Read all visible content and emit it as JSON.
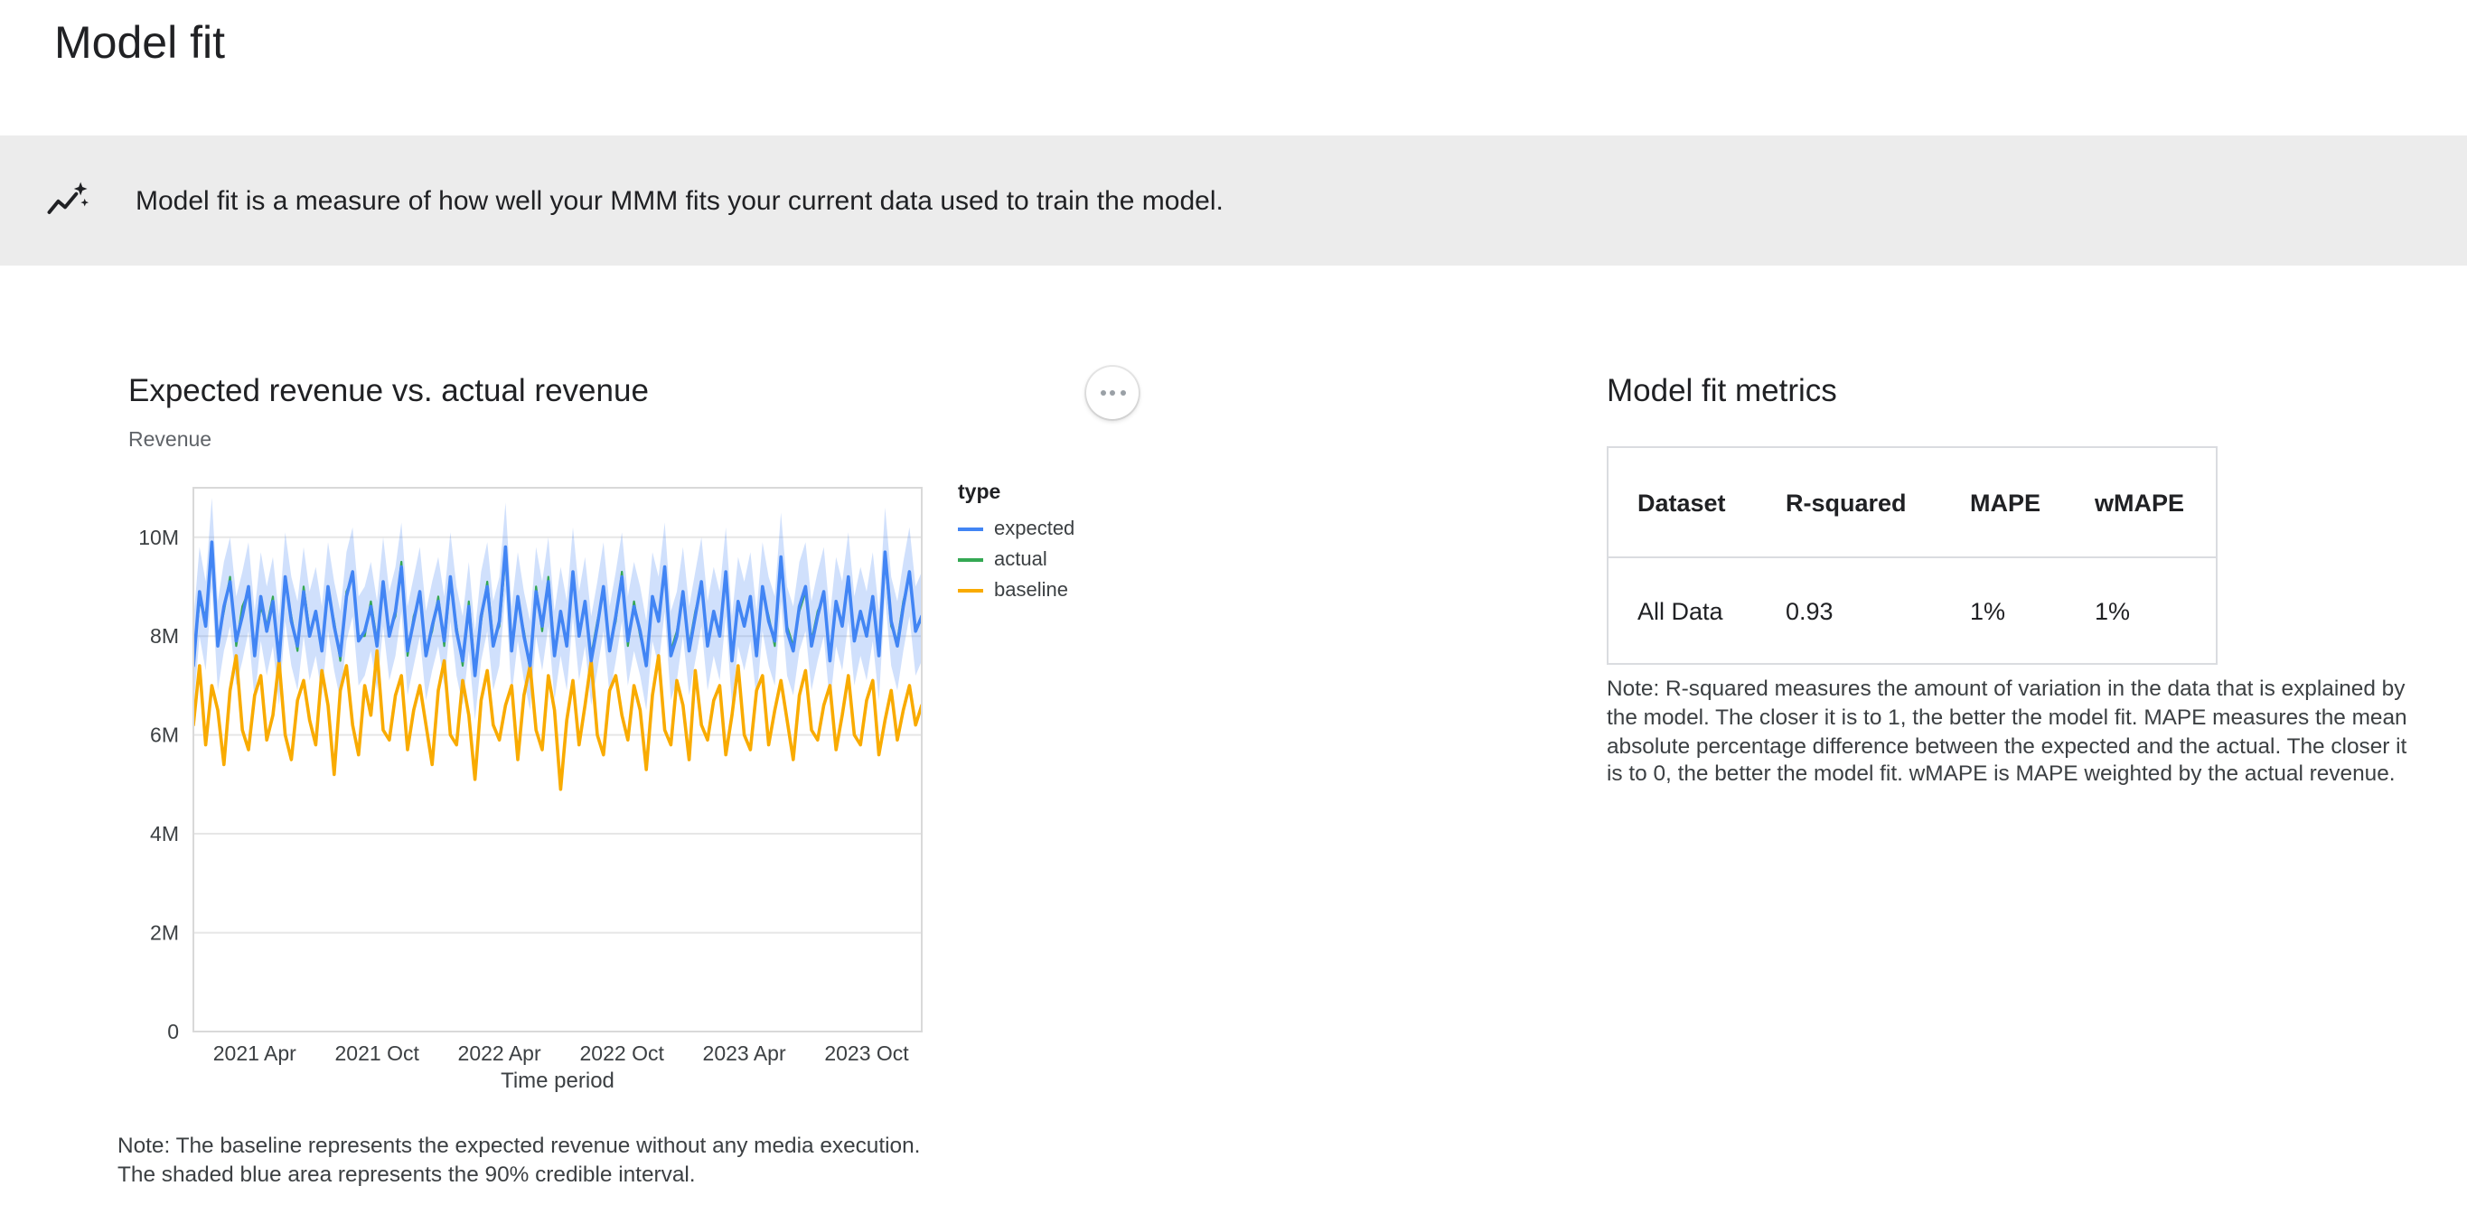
{
  "page": {
    "title": "Model fit"
  },
  "banner": {
    "icon": "model-fit-sparkline-icon",
    "text": "Model fit is a measure of how well your MMM fits your current data used to train the model."
  },
  "chart_card": {
    "more_menu_label": "more options",
    "note_lines": [
      "Note: The baseline represents the expected revenue without any media execution.",
      "The shaded blue area represents the 90% credible interval."
    ]
  },
  "chart_data": {
    "type": "line",
    "title": "Expected revenue vs. actual revenue",
    "ylabel": "Revenue",
    "xlabel": "Time period",
    "unit": "M",
    "ylim": [
      0,
      11
    ],
    "grid": true,
    "legend_position": "right",
    "legend_title": "type",
    "y_ticks": [
      0,
      2,
      4,
      6,
      8,
      10
    ],
    "y_tick_labels": [
      "0",
      "2M",
      "4M",
      "6M",
      "8M",
      "10M"
    ],
    "x_tick_indices": [
      10,
      30,
      50,
      70,
      90,
      110
    ],
    "x_tick_labels": [
      "2021 Apr",
      "2021 Oct",
      "2022 Apr",
      "2022 Oct",
      "2023 Apr",
      "2023 Oct"
    ],
    "credible_interval": {
      "level": "90%",
      "halfwidth": 0.9,
      "color": "#4285f4",
      "opacity": 0.25
    },
    "series": [
      {
        "name": "expected",
        "color": "#4285f4",
        "width": 1.8,
        "values": [
          7.4,
          8.9,
          8.2,
          9.9,
          7.8,
          8.6,
          9.1,
          7.9,
          8.4,
          9.0,
          7.6,
          8.8,
          8.1,
          8.7,
          7.5,
          9.2,
          8.3,
          7.8,
          8.9,
          8.0,
          8.5,
          7.7,
          9.0,
          8.2,
          7.6,
          8.8,
          9.3,
          7.9,
          8.1,
          8.6,
          7.8,
          9.1,
          8.0,
          8.5,
          9.4,
          7.7,
          8.3,
          8.9,
          7.6,
          8.2,
          8.7,
          7.9,
          9.2,
          8.1,
          7.5,
          8.6,
          7.2,
          8.4,
          9.0,
          7.8,
          8.3,
          9.8,
          7.7,
          8.8,
          8.0,
          7.4,
          8.9,
          8.2,
          9.1,
          7.6,
          8.5,
          7.8,
          9.3,
          8.0,
          8.7,
          7.5,
          8.2,
          9.0,
          7.7,
          8.4,
          9.2,
          7.9,
          8.6,
          8.1,
          7.4,
          8.8,
          8.3,
          9.4,
          7.6,
          8.0,
          8.9,
          7.7,
          8.4,
          9.1,
          7.8,
          8.5,
          8.0,
          9.3,
          7.5,
          8.7,
          8.2,
          8.8,
          7.6,
          9.0,
          8.3,
          7.9,
          9.6,
          8.1,
          7.7,
          8.6,
          9.0,
          7.8,
          8.4,
          8.9,
          7.5,
          8.7,
          8.2,
          9.2,
          7.9,
          8.5,
          8.0,
          8.8,
          7.6,
          9.7,
          8.3,
          7.8,
          8.6,
          9.3,
          8.1,
          8.4
        ]
      },
      {
        "name": "actual",
        "color": "#34a853",
        "width": 1.1,
        "values": [
          7.5,
          8.7,
          8.4,
          9.7,
          7.9,
          8.5,
          9.2,
          7.8,
          8.6,
          8.9,
          7.7,
          8.6,
          8.2,
          8.8,
          7.4,
          9.1,
          8.4,
          7.7,
          9.0,
          8.1,
          8.4,
          7.8,
          8.9,
          8.3,
          7.5,
          8.9,
          9.2,
          8.0,
          8.0,
          8.7,
          7.9,
          9.0,
          8.1,
          8.4,
          9.5,
          7.6,
          8.4,
          8.8,
          7.7,
          8.1,
          8.8,
          7.8,
          9.1,
          8.2,
          7.4,
          8.7,
          7.3,
          8.3,
          9.1,
          7.9,
          8.2,
          9.6,
          7.8,
          8.7,
          8.1,
          7.3,
          9.0,
          8.1,
          9.2,
          7.7,
          8.4,
          7.9,
          9.2,
          8.1,
          8.6,
          7.6,
          8.3,
          8.9,
          7.8,
          8.3,
          9.3,
          7.8,
          8.7,
          8.0,
          7.5,
          8.7,
          8.4,
          9.3,
          7.7,
          8.1,
          8.8,
          7.8,
          8.5,
          9.0,
          7.9,
          8.4,
          8.1,
          9.2,
          7.6,
          8.6,
          8.3,
          8.7,
          7.7,
          8.9,
          8.4,
          7.8,
          9.5,
          8.2,
          7.8,
          8.5,
          8.9,
          7.9,
          8.5,
          8.8,
          7.6,
          8.6,
          8.3,
          9.1,
          8.0,
          8.4,
          8.1,
          8.7,
          7.7,
          9.6,
          8.2,
          7.9,
          8.7,
          9.2,
          8.2,
          8.3
        ]
      },
      {
        "name": "baseline",
        "color": "#f9ab00",
        "width": 1.8,
        "values": [
          6.2,
          7.4,
          5.8,
          7.0,
          6.5,
          5.4,
          6.9,
          7.6,
          6.1,
          5.7,
          6.8,
          7.2,
          5.9,
          6.4,
          7.5,
          6.0,
          5.5,
          6.7,
          7.1,
          6.3,
          5.8,
          7.3,
          6.6,
          5.2,
          6.9,
          7.4,
          6.2,
          5.6,
          7.0,
          6.4,
          7.7,
          6.1,
          5.9,
          6.8,
          7.2,
          5.7,
          6.5,
          7.0,
          6.2,
          5.4,
          6.9,
          7.5,
          6.0,
          5.8,
          7.1,
          6.4,
          5.1,
          6.7,
          7.3,
          6.2,
          5.9,
          6.6,
          7.0,
          5.5,
          6.8,
          7.4,
          6.1,
          5.7,
          7.2,
          6.5,
          4.9,
          6.3,
          7.1,
          5.8,
          6.6,
          7.5,
          6.0,
          5.6,
          6.9,
          7.2,
          6.4,
          5.9,
          7.0,
          6.5,
          5.3,
          6.8,
          7.6,
          6.1,
          5.8,
          7.1,
          6.6,
          5.5,
          7.3,
          6.2,
          5.9,
          6.7,
          7.0,
          5.6,
          6.4,
          7.4,
          6.0,
          5.7,
          6.9,
          7.2,
          5.8,
          6.5,
          7.1,
          6.3,
          5.5,
          6.8,
          7.3,
          6.1,
          5.9,
          6.6,
          7.0,
          5.7,
          6.4,
          7.2,
          6.0,
          5.8,
          6.7,
          7.1,
          5.6,
          6.3,
          6.9,
          5.9,
          6.5,
          7.0,
          6.2,
          6.6
        ]
      }
    ]
  },
  "metrics": {
    "title": "Model fit metrics",
    "columns": [
      "Dataset",
      "R-squared",
      "MAPE",
      "wMAPE"
    ],
    "rows": [
      [
        "All Data",
        "0.93",
        "1%",
        "1%"
      ]
    ],
    "note": "Note: R-squared measures the amount of variation in the data that is explained by the model. The closer it is to 1, the better the model fit. MAPE measures the mean absolute percentage difference between the expected and the actual. The closer it is to 0, the better the model fit. wMAPE is MAPE weighted by the actual revenue."
  }
}
